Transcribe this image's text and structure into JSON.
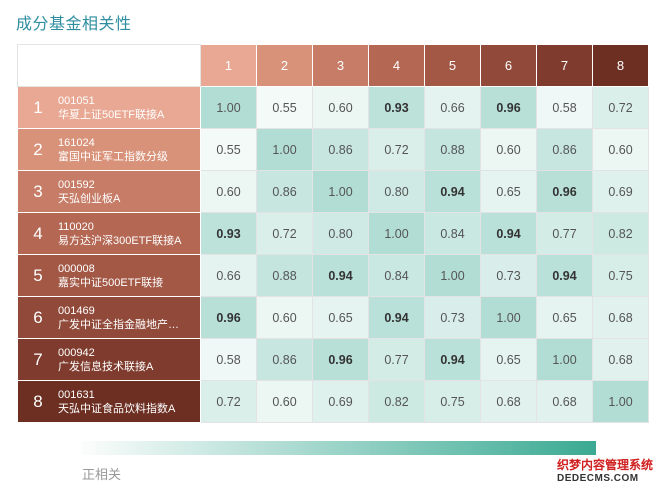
{
  "title": "成分基金相关性",
  "legend_label": "正相关",
  "watermark": {
    "line1": "织梦内容管理系统",
    "line2": "DEDECMS.COM"
  },
  "colors": {
    "header_gradient": [
      "#e8a893",
      "#d8927a",
      "#c67c66",
      "#b46854",
      "#a35846",
      "#914a3a",
      "#7f3c2e",
      "#6c2f22"
    ],
    "low": "#fbfdfc",
    "high": "#3aaa93"
  },
  "columns": [
    "1",
    "2",
    "3",
    "4",
    "5",
    "6",
    "7",
    "8"
  ],
  "funds": [
    {
      "index": "1",
      "code": "001051",
      "name": "华夏上证50ETF联接A"
    },
    {
      "index": "2",
      "code": "161024",
      "name": "富国中证军工指数分级"
    },
    {
      "index": "3",
      "code": "001592",
      "name": "天弘创业板A"
    },
    {
      "index": "4",
      "code": "110020",
      "name": "易方达沪深300ETF联接A"
    },
    {
      "index": "5",
      "code": "000008",
      "name": "嘉实中证500ETF联接"
    },
    {
      "index": "6",
      "code": "001469",
      "name": "广发中证全指金融地产…"
    },
    {
      "index": "7",
      "code": "000942",
      "name": "广发信息技术联接A"
    },
    {
      "index": "8",
      "code": "001631",
      "name": "天弘中证食品饮料指数A"
    }
  ],
  "matrix": [
    [
      "1.00",
      "0.55",
      "0.60",
      "0.93",
      "0.66",
      "0.96",
      "0.58",
      "0.72"
    ],
    [
      "0.55",
      "1.00",
      "0.86",
      "0.72",
      "0.88",
      "0.60",
      "0.86",
      "0.60"
    ],
    [
      "0.60",
      "0.86",
      "1.00",
      "0.80",
      "0.94",
      "0.65",
      "0.96",
      "0.69"
    ],
    [
      "0.93",
      "0.72",
      "0.80",
      "1.00",
      "0.84",
      "0.94",
      "0.77",
      "0.82"
    ],
    [
      "0.66",
      "0.88",
      "0.94",
      "0.84",
      "1.00",
      "0.73",
      "0.94",
      "0.75"
    ],
    [
      "0.96",
      "0.60",
      "0.65",
      "0.94",
      "0.73",
      "1.00",
      "0.65",
      "0.68"
    ],
    [
      "0.58",
      "0.86",
      "0.96",
      "0.77",
      "0.94",
      "0.65",
      "1.00",
      "0.68"
    ],
    [
      "0.72",
      "0.60",
      "0.69",
      "0.82",
      "0.75",
      "0.68",
      "0.68",
      "1.00"
    ]
  ],
  "bold_threshold": 0.9
}
